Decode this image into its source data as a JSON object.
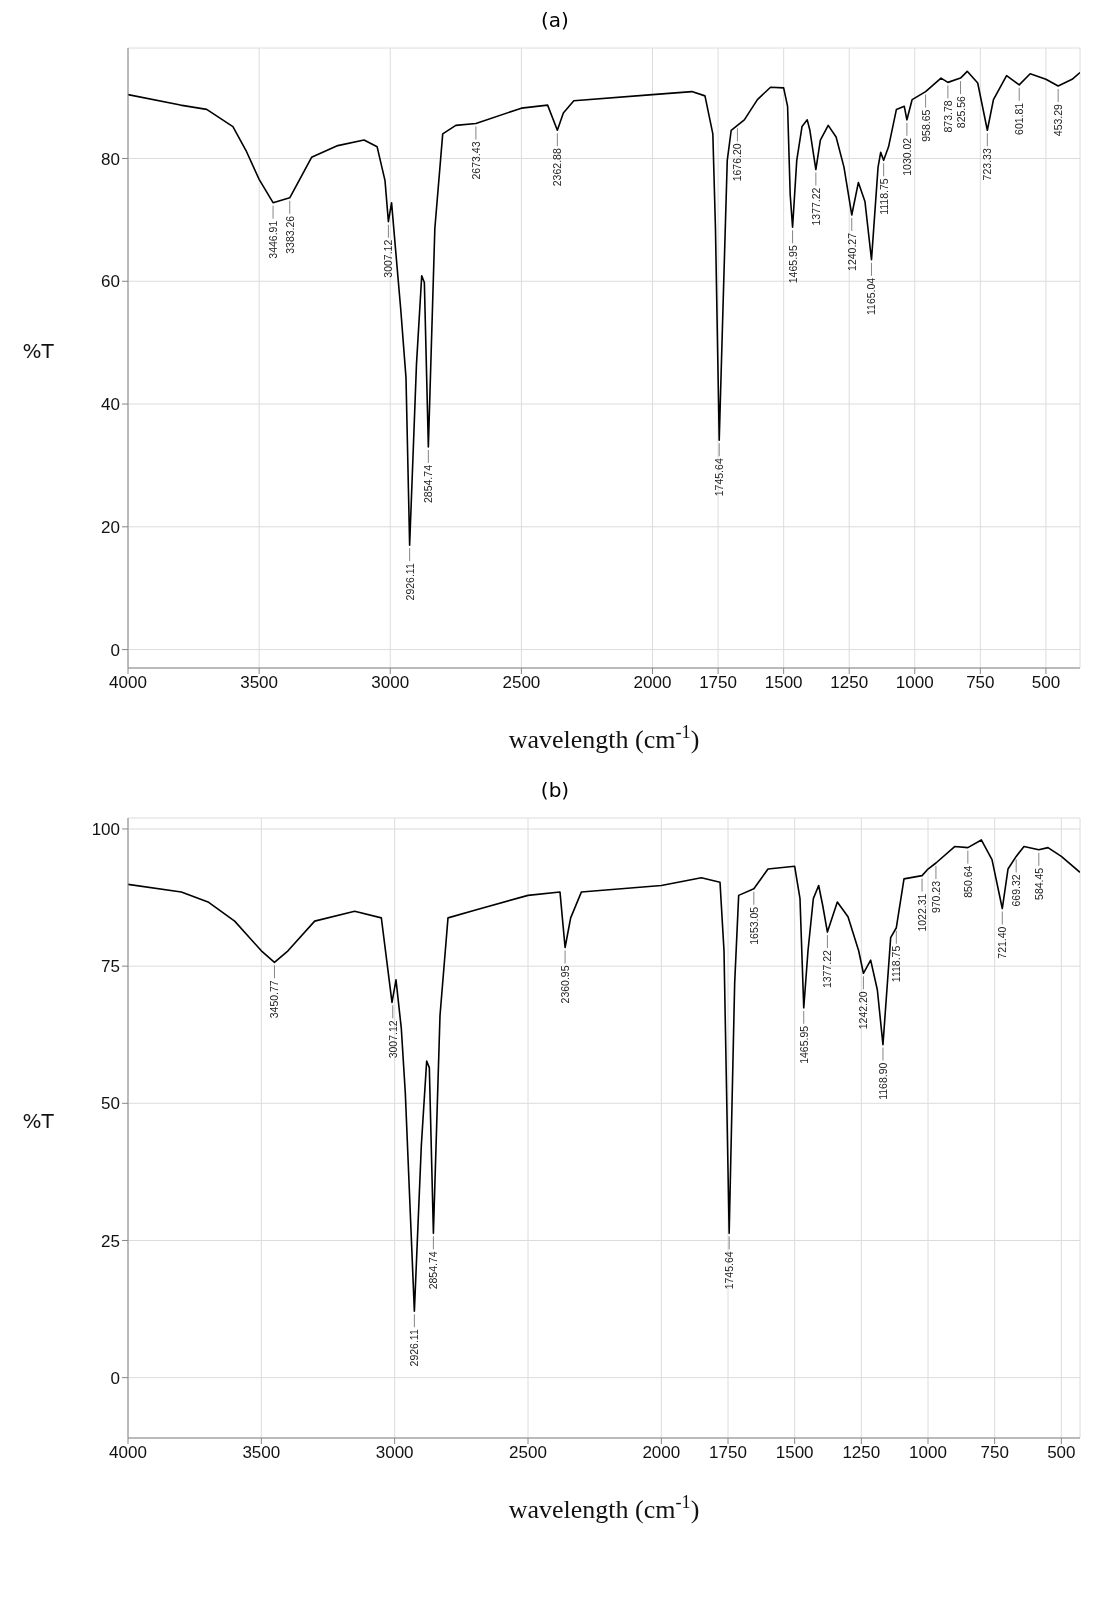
{
  "chart_data": [
    {
      "type": "line",
      "title": "(a)",
      "xlabel": "wavelength (cm$^{-1}$)",
      "ylabel": "%T",
      "xlim": [
        4000,
        370
      ],
      "xticks": [
        4000,
        3500,
        3000,
        2500,
        2000,
        1750,
        1500,
        1250,
        1000,
        750,
        500
      ],
      "ylim": [
        -3,
        98
      ],
      "yticks": [
        0,
        20,
        40,
        60,
        80
      ],
      "grid": true,
      "series": [
        {
          "color": "#000000",
          "x": [
            4000,
            3800,
            3700,
            3600,
            3550,
            3500,
            3446.91,
            3383.26,
            3300,
            3200,
            3100,
            3050,
            3020,
            3007.12,
            2995,
            2980,
            2960,
            2940,
            2926.11,
            2900,
            2880,
            2870,
            2854.74,
            2830,
            2800,
            2750,
            2673.43,
            2500,
            2400,
            2362.88,
            2340,
            2300,
            2000,
            1850,
            1800,
            1770,
            1760,
            1745.64,
            1730,
            1715,
            1700,
            1676.2,
            1650,
            1600,
            1550,
            1500,
            1485,
            1475,
            1465.95,
            1450,
            1430,
            1410,
            1400,
            1377.22,
            1360,
            1330,
            1300,
            1270,
            1240.27,
            1215,
            1190,
            1165.04,
            1140,
            1130,
            1118.75,
            1100,
            1070,
            1040,
            1030.02,
            1010,
            958.65,
            900,
            873.78,
            825.56,
            800,
            760,
            723.33,
            700,
            650,
            601.81,
            560,
            500,
            453.29,
            400,
            370
          ],
          "values": [
            90.4,
            88.7,
            88,
            85.2,
            81.3,
            76.6,
            72.8,
            73.6,
            80.2,
            82.1,
            83,
            81.9,
            76.4,
            69.7,
            72.8,
            65.3,
            55.4,
            44.3,
            17,
            46.5,
            60.9,
            59.8,
            33,
            68.6,
            84,
            85.4,
            85.7,
            88.2,
            88.7,
            84.6,
            87.4,
            89.4,
            90.4,
            90.9,
            90.2,
            84,
            68.6,
            34.1,
            57.6,
            79.7,
            84.6,
            85.4,
            86.3,
            89.6,
            91.6,
            91.5,
            88.5,
            74.1,
            68.8,
            79.7,
            85.2,
            86.3,
            84.6,
            78.2,
            83,
            85.4,
            83.5,
            78.6,
            70.8,
            76.1,
            73,
            63.5,
            78.6,
            81,
            79.7,
            81.9,
            88,
            88.5,
            86.3,
            89.6,
            90.9,
            93.1,
            92.4,
            93.1,
            94.2,
            92.3,
            84.6,
            89.6,
            93.5,
            92,
            93.8,
            92.9,
            91.8,
            92.9,
            94
          ]
        }
      ],
      "annotations": [
        {
          "text": "3446.91",
          "x": 3446.91,
          "y": 72.8
        },
        {
          "text": "3383.26",
          "x": 3383.26,
          "y": 73.6
        },
        {
          "text": "3007.12",
          "x": 3007.12,
          "y": 69.7
        },
        {
          "text": "2926.11",
          "x": 2926.11,
          "y": 17
        },
        {
          "text": "2854.74",
          "x": 2854.74,
          "y": 33
        },
        {
          "text": "2673.43",
          "x": 2673.43,
          "y": 85.7
        },
        {
          "text": "2362.88",
          "x": 2362.88,
          "y": 84.6
        },
        {
          "text": "1745.64",
          "x": 1745.64,
          "y": 34.1
        },
        {
          "text": "1676.20",
          "x": 1676.2,
          "y": 85.4
        },
        {
          "text": "1465.95",
          "x": 1465.95,
          "y": 68.8
        },
        {
          "text": "1377.22",
          "x": 1377.22,
          "y": 78.2
        },
        {
          "text": "1240.27",
          "x": 1240.27,
          "y": 70.8
        },
        {
          "text": "1165.04",
          "x": 1165.04,
          "y": 63.5
        },
        {
          "text": "1118.75",
          "x": 1118.75,
          "y": 79.7
        },
        {
          "text": "1030.02",
          "x": 1030.02,
          "y": 86.3
        },
        {
          "text": "958.65",
          "x": 958.65,
          "y": 90.9
        },
        {
          "text": "873.78",
          "x": 873.78,
          "y": 92.4
        },
        {
          "text": "825.56",
          "x": 825.56,
          "y": 93.1
        },
        {
          "text": "723.33",
          "x": 723.33,
          "y": 84.6
        },
        {
          "text": "601.81",
          "x": 601.81,
          "y": 92
        },
        {
          "text": "453.29",
          "x": 453.29,
          "y": 91.8
        }
      ]
    },
    {
      "type": "line",
      "title": "(b)",
      "xlabel": "wavelength (cm$^{-1}$)",
      "ylabel": "%T",
      "xlim": [
        4000,
        430
      ],
      "xticks": [
        4000,
        3500,
        3000,
        2500,
        2000,
        1750,
        1500,
        1250,
        1000,
        750,
        500
      ],
      "ylim": [
        -11,
        102
      ],
      "yticks": [
        0,
        25,
        50,
        75,
        100
      ],
      "grid": true,
      "series": [
        {
          "color": "#000000",
          "x": [
            4000,
            3800,
            3700,
            3600,
            3500,
            3450.77,
            3400,
            3300,
            3150,
            3050,
            3010,
            2995,
            2975,
            2960,
            2926.11,
            2900,
            2880,
            2870,
            2854.74,
            2830,
            2800,
            2700,
            2500,
            2380,
            2360.95,
            2340,
            2300,
            2000,
            1850,
            1780,
            1765,
            1745.64,
            1725,
            1710,
            1653.05,
            1600,
            1500,
            1480,
            1465.95,
            1450,
            1430,
            1410,
            1395,
            1377.22,
            1340,
            1300,
            1260,
            1242.2,
            1215,
            1190,
            1168.9,
            1140,
            1118.75,
            1090,
            1022.31,
            1000,
            970.23,
            900,
            850.64,
            800,
            760,
            721.4,
            700,
            669.32,
            640,
            584.45,
            550,
            500,
            430
          ],
          "values": [
            89.9,
            88.5,
            86.7,
            83.2,
            77.8,
            75.7,
            77.8,
            83.2,
            85,
            83.8,
            68.4,
            72.5,
            63.6,
            51.8,
            12.1,
            42.3,
            57.7,
            56.5,
            26.3,
            66,
            83.8,
            85.2,
            87.9,
            88.5,
            78.4,
            83.8,
            88.5,
            89.7,
            91.1,
            90.3,
            77.8,
            26.3,
            71.9,
            87.9,
            89.1,
            92.7,
            93.2,
            87.3,
            67.4,
            77.8,
            87.3,
            89.7,
            86.1,
            81.2,
            86.7,
            84,
            77.8,
            73.7,
            76.1,
            70.7,
            60.7,
            80.2,
            82,
            90.9,
            91.5,
            92.7,
            93.8,
            96.8,
            96.6,
            98,
            94.4,
            85.5,
            92.7,
            95,
            96.8,
            96.2,
            96.6,
            95,
            92.1
          ]
        }
      ],
      "annotations": [
        {
          "text": "3450.77",
          "x": 3450.77,
          "y": 75.7
        },
        {
          "text": "3007.12",
          "x": 3007.12,
          "y": 68.4
        },
        {
          "text": "2926.11",
          "x": 2926.11,
          "y": 12.1
        },
        {
          "text": "2854.74",
          "x": 2854.74,
          "y": 26.3
        },
        {
          "text": "2360.95",
          "x": 2360.95,
          "y": 78.4
        },
        {
          "text": "1745.64",
          "x": 1745.64,
          "y": 26.3
        },
        {
          "text": "1653.05",
          "x": 1653.05,
          "y": 89.1
        },
        {
          "text": "1465.95",
          "x": 1465.95,
          "y": 67.4
        },
        {
          "text": "1377.22",
          "x": 1377.22,
          "y": 81.2
        },
        {
          "text": "1242.20",
          "x": 1242.2,
          "y": 73.7
        },
        {
          "text": "1168.90",
          "x": 1168.9,
          "y": 60.7
        },
        {
          "text": "1118.75",
          "x": 1118.75,
          "y": 82
        },
        {
          "text": "1022.31",
          "x": 1022.31,
          "y": 91.5
        },
        {
          "text": "970.23",
          "x": 970.23,
          "y": 93.8
        },
        {
          "text": "850.64",
          "x": 850.64,
          "y": 96.6
        },
        {
          "text": "721.40",
          "x": 721.4,
          "y": 85.5
        },
        {
          "text": "669.32",
          "x": 669.32,
          "y": 95
        },
        {
          "text": "584.45",
          "x": 584.45,
          "y": 96.2
        }
      ]
    }
  ]
}
